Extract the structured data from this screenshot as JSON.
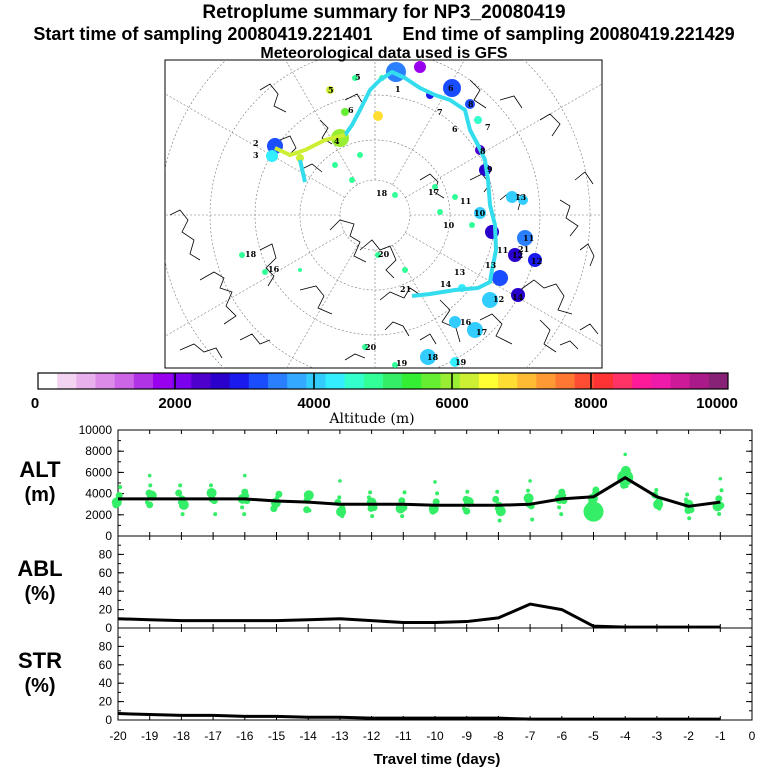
{
  "header": {
    "title": "Retroplume summary for NP3_20080419",
    "start_label": "Start time of sampling 20080419.221401",
    "end_label": "End time of sampling 20080419.221429",
    "met_label": "Meteorological data used is GFS"
  },
  "colorbar": {
    "label": "Altitude (m)",
    "ticks": [
      "0",
      "2000",
      "4000",
      "6000",
      "8000",
      "10000"
    ],
    "colors": [
      "#ffffff",
      "#f2d4f2",
      "#e8b0ec",
      "#dc8ce8",
      "#cc66e6",
      "#b033e6",
      "#9900ee",
      "#7a00ee",
      "#4d00cc",
      "#2a00cc",
      "#1a1aee",
      "#1a4dff",
      "#2a7fff",
      "#33aaff",
      "#33ccff",
      "#33eeff",
      "#33ffcc",
      "#33ff99",
      "#33ee66",
      "#33ee33",
      "#66ee33",
      "#99ee33",
      "#ccee33",
      "#ffff33",
      "#ffdd33",
      "#ffbb33",
      "#ff9933",
      "#ff7733",
      "#ff4d33",
      "#ff3333",
      "#ff3366",
      "#ff1a99",
      "#ee1aaa",
      "#cc1a99",
      "#aa1a88",
      "#882277"
    ]
  },
  "map": {
    "point_labels": [
      "1",
      "2",
      "3",
      "4",
      "5",
      "6",
      "7",
      "8",
      "9",
      "10",
      "11",
      "12",
      "13",
      "14",
      "15",
      "16",
      "17",
      "18",
      "19",
      "20",
      "21"
    ]
  },
  "chart_data": [
    {
      "type": "line",
      "panel": "ALT",
      "ylabel": "ALT (m)",
      "ylabel_lines": [
        "ALT",
        "(m)"
      ],
      "ylim": [
        0,
        10000
      ],
      "yticks": [
        "0",
        "2000",
        "4000",
        "6000",
        "8000",
        "10000"
      ],
      "x": [
        -20,
        -19,
        -18,
        -17,
        -16,
        -15,
        -14,
        -13,
        -12,
        -11,
        -10,
        -9,
        -8,
        -7,
        -6,
        -5,
        -4,
        -3,
        -2,
        -1
      ],
      "values": [
        3500,
        3500,
        3500,
        3500,
        3500,
        3300,
        3200,
        3000,
        3000,
        3000,
        2900,
        2900,
        2900,
        3000,
        3500,
        3700,
        5500,
        3700,
        2800,
        3200
      ],
      "scatter_note": "green dots show spread of particle altitudes"
    },
    {
      "type": "line",
      "panel": "ABL",
      "ylabel": "ABL (%)",
      "ylabel_lines": [
        "ABL",
        "(%)"
      ],
      "ylim": [
        0,
        100
      ],
      "yticks": [
        "0",
        "20",
        "40",
        "60",
        "80"
      ],
      "x": [
        -20,
        -19,
        -18,
        -17,
        -16,
        -15,
        -14,
        -13,
        -12,
        -11,
        -10,
        -9,
        -8,
        -7,
        -6,
        -5,
        -4,
        -3,
        -2,
        -1
      ],
      "values": [
        10,
        9,
        8,
        8,
        8,
        8,
        9,
        10,
        8,
        6,
        6,
        7,
        11,
        26,
        20,
        2,
        1,
        1,
        1,
        1
      ]
    },
    {
      "type": "line",
      "panel": "STR",
      "ylabel": "STR (%)",
      "ylabel_lines": [
        "STR",
        "(%)"
      ],
      "ylim": [
        0,
        100
      ],
      "yticks": [
        "0",
        "20",
        "40",
        "60",
        "80"
      ],
      "x": [
        -20,
        -19,
        -18,
        -17,
        -16,
        -15,
        -14,
        -13,
        -12,
        -11,
        -10,
        -9,
        -8,
        -7,
        -6,
        -5,
        -4,
        -3,
        -2,
        -1
      ],
      "values": [
        7,
        6,
        5,
        5,
        4,
        4,
        3,
        3,
        2,
        2,
        2,
        2,
        2,
        1,
        1,
        1,
        1,
        1,
        1,
        1
      ]
    }
  ],
  "xaxis": {
    "label": "Travel time (days)",
    "ticks": [
      "-20",
      "-19",
      "-18",
      "-17",
      "-16",
      "-15",
      "-14",
      "-13",
      "-12",
      "-11",
      "-10",
      "-9",
      "-8",
      "-7",
      "-6",
      "-5",
      "-4",
      "-3",
      "-2",
      "-1",
      "0"
    ],
    "xlim": [
      -20,
      0
    ]
  }
}
